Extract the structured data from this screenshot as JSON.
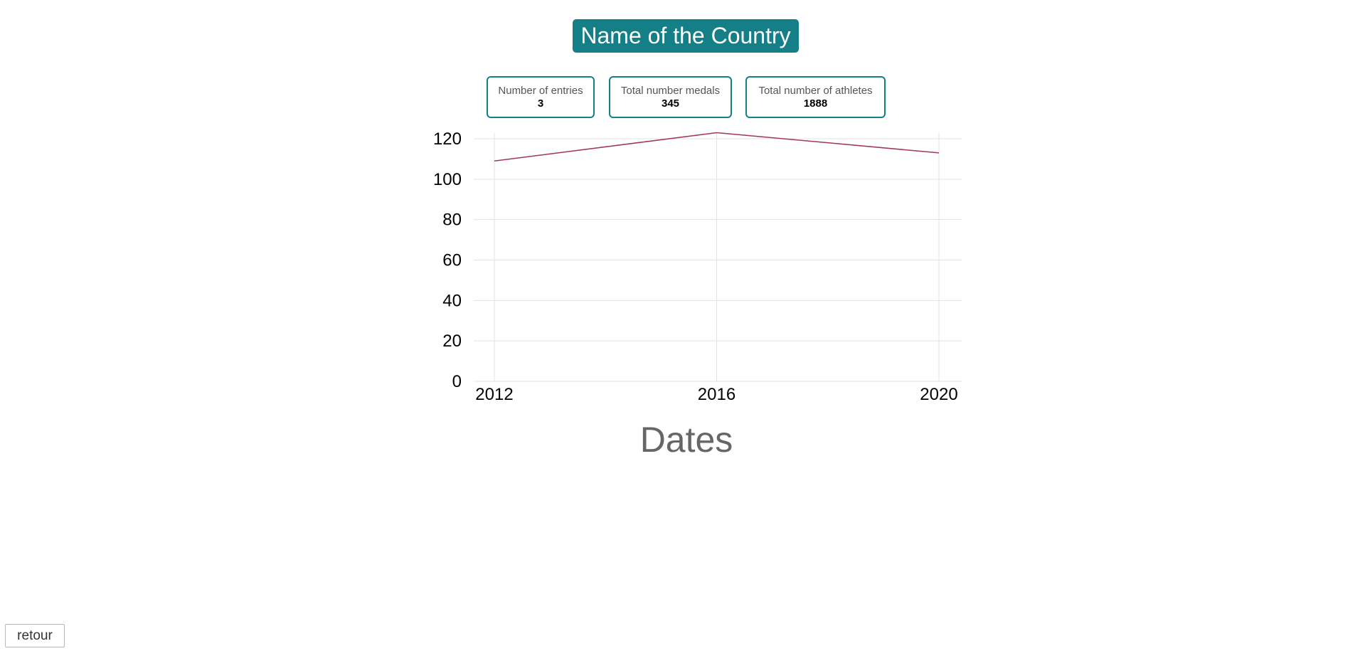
{
  "header": {
    "title": "Name of the Country"
  },
  "stats": [
    {
      "label": "Number of entries",
      "value": "3"
    },
    {
      "label": "Total number medals",
      "value": "345"
    },
    {
      "label": "Total number of athletes",
      "value": "1888"
    }
  ],
  "chart_data": {
    "type": "line",
    "x": [
      "2012",
      "2016",
      "2020"
    ],
    "series": [
      {
        "values": [
          109,
          123,
          113
        ],
        "color": "#a0365e"
      }
    ],
    "xlabel": "Dates",
    "ylabel": "",
    "ylim": [
      0,
      120
    ],
    "yticks": [
      0,
      20,
      40,
      60,
      80,
      100,
      120
    ],
    "grid": true
  },
  "footer": {
    "back_label": "retour"
  }
}
